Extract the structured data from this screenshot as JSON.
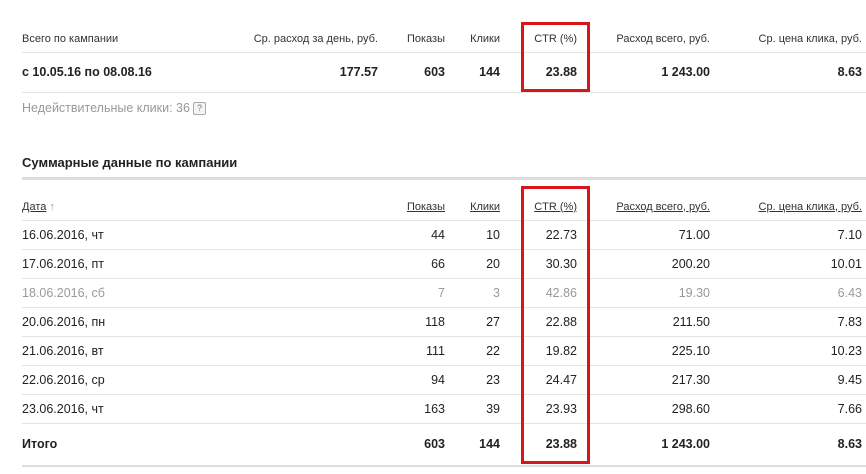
{
  "summary": {
    "headers": [
      "Всего по кампании",
      "Ср. расход за день, руб.",
      "Показы",
      "Клики",
      "CTR (%)",
      "Расход всего, руб.",
      "Ср. цена клика, руб."
    ],
    "row": [
      "с 10.05.16 по 08.08.16",
      "177.57",
      "603",
      "144",
      "23.88",
      "1 243.00",
      "8.63"
    ],
    "invalid_clicks_label": "Недействительные клики: 36",
    "help_icon": "?"
  },
  "details": {
    "title": "Суммарные данные по кампании",
    "headers": [
      "Дата",
      "Показы",
      "Клики",
      "CTR (%)",
      "Расход всего, руб.",
      "Ср. цена клика, руб."
    ],
    "sort_icon": "↑",
    "rows": [
      {
        "cells": [
          "16.06.2016, чт",
          "44",
          "10",
          "22.73",
          "71.00",
          "7.10"
        ],
        "muted": false
      },
      {
        "cells": [
          "17.06.2016, пт",
          "66",
          "20",
          "30.30",
          "200.20",
          "10.01"
        ],
        "muted": false
      },
      {
        "cells": [
          "18.06.2016, сб",
          "7",
          "3",
          "42.86",
          "19.30",
          "6.43"
        ],
        "muted": true
      },
      {
        "cells": [
          "20.06.2016, пн",
          "118",
          "27",
          "22.88",
          "211.50",
          "7.83"
        ],
        "muted": false
      },
      {
        "cells": [
          "21.06.2016, вт",
          "111",
          "22",
          "19.82",
          "225.10",
          "10.23"
        ],
        "muted": false
      },
      {
        "cells": [
          "22.06.2016, ср",
          "94",
          "23",
          "24.47",
          "217.30",
          "9.45"
        ],
        "muted": false
      },
      {
        "cells": [
          "23.06.2016, чт",
          "163",
          "39",
          "23.93",
          "298.60",
          "7.66"
        ],
        "muted": false
      }
    ],
    "total": [
      "Итого",
      "603",
      "144",
      "23.88",
      "1 243.00",
      "8.63"
    ]
  },
  "highlight_color": "#d9141b"
}
